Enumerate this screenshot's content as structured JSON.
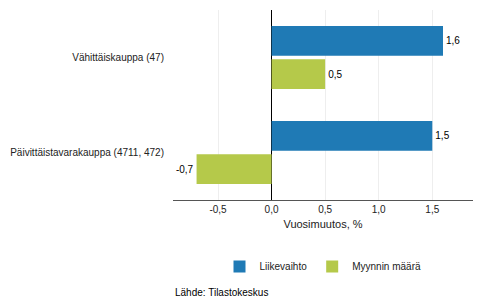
{
  "chart_data": {
    "type": "bar",
    "orientation": "horizontal",
    "categories": [
      "Päivittäistavarakauppa (4711, 472)",
      "Vähittäiskauppa (47)"
    ],
    "series": [
      {
        "name": "Liikevaihto",
        "color": "#1f7ab5",
        "values": [
          1.5,
          1.6
        ],
        "value_labels": [
          "1,5",
          "1,6"
        ]
      },
      {
        "name": "Myynnin määrä",
        "color": "#b5c94a",
        "values": [
          -0.7,
          0.5
        ],
        "value_labels": [
          "-0,7",
          "0,5"
        ]
      }
    ],
    "xlabel": "Vuosimuutos, %",
    "xlim": [
      -0.92,
      1.88
    ],
    "xticks": [
      {
        "value": -0.5,
        "label": "-0,5"
      },
      {
        "value": 0.0,
        "label": "0,0"
      },
      {
        "value": 0.5,
        "label": "0,5"
      },
      {
        "value": 1.0,
        "label": "1,0"
      },
      {
        "value": 1.5,
        "label": "1,5"
      }
    ],
    "grid": true,
    "legend": "bottom",
    "data_labels": true,
    "annotations": [
      "Lähde: Tilastokeskus"
    ]
  }
}
